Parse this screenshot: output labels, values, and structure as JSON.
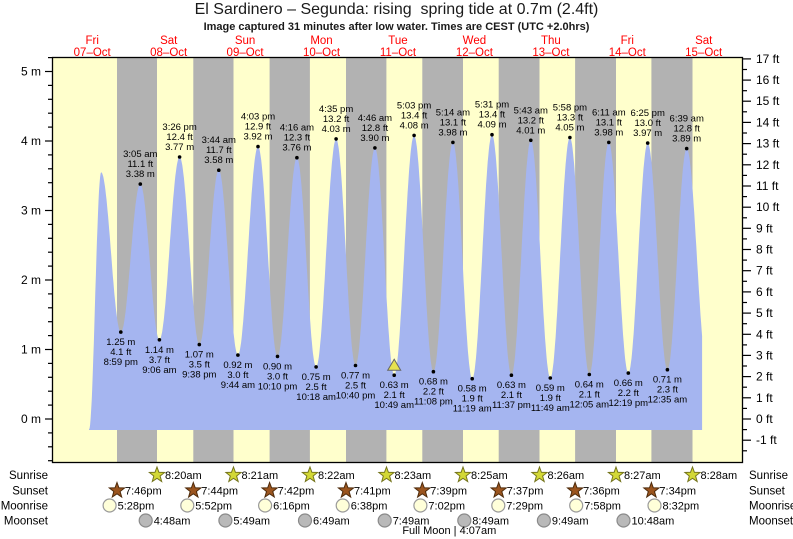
{
  "title": "El Sardinero – Segunda: rising  spring tide at 0.7m (2.4ft)",
  "subtitle": "Image captured 31 minutes after low water. Times are CEST (UTC +2.0hrs)",
  "days": [
    {
      "name": "Fri",
      "date": "07–Oct"
    },
    {
      "name": "Sat",
      "date": "08–Oct"
    },
    {
      "name": "Sun",
      "date": "09–Oct"
    },
    {
      "name": "Mon",
      "date": "10–Oct"
    },
    {
      "name": "Tue",
      "date": "11–Oct"
    },
    {
      "name": "Wed",
      "date": "12–Oct"
    },
    {
      "name": "Thu",
      "date": "13–Oct"
    },
    {
      "name": "Fri",
      "date": "14–Oct"
    },
    {
      "name": "Sat",
      "date": "15–Oct"
    }
  ],
  "chart_data": {
    "type": "area",
    "x_axis": "time, Fri 07-Oct 00:00 through Sat 15-Oct, 9 day columns",
    "y_left": {
      "unit": "m",
      "ticks": [
        0,
        1,
        2,
        3,
        4,
        5
      ],
      "minor_step": 0.2
    },
    "y_right": {
      "unit": "ft",
      "min": -1,
      "max": 17,
      "minor_step": 0.5
    },
    "colors": {
      "day_bg": "#ffffcc",
      "night_bg": "#b2b2b2",
      "tide_fill": "#a5b5f0",
      "frame": "#000000",
      "day_label": "#ff0000",
      "annotation": "#000000",
      "current_marker": "#e6e24e"
    },
    "events": [
      {
        "day": 0,
        "time": "11:00 am",
        "m": -0.15,
        "type": "edge",
        "labeled": false
      },
      {
        "day": 0,
        "time": "2:48 pm",
        "m": 3.55,
        "type": "high",
        "labeled": false
      },
      {
        "day": 0,
        "time": "8:59 pm",
        "m": 1.25,
        "ft": "4.1 ft",
        "type": "low",
        "labeled": true
      },
      {
        "day": 1,
        "time": "3:05 am",
        "m": 3.38,
        "ft": "11.1 ft",
        "type": "high",
        "labeled": true
      },
      {
        "day": 1,
        "time": "9:06 am",
        "m": 1.14,
        "ft": "3.7 ft",
        "type": "low",
        "labeled": true
      },
      {
        "day": 1,
        "time": "3:26 pm",
        "m": 3.77,
        "ft": "12.4 ft",
        "type": "high",
        "labeled": true
      },
      {
        "day": 1,
        "time": "9:38 pm",
        "m": 1.07,
        "ft": "3.5 ft",
        "type": "low",
        "labeled": true
      },
      {
        "day": 2,
        "time": "3:44 am",
        "m": 3.58,
        "ft": "11.7 ft",
        "type": "high",
        "labeled": true
      },
      {
        "day": 2,
        "time": "9:44 am",
        "m": 0.92,
        "ft": "3.0 ft",
        "type": "low",
        "labeled": true
      },
      {
        "day": 2,
        "time": "4:03 pm",
        "m": 3.92,
        "ft": "12.9 ft",
        "type": "high",
        "labeled": true
      },
      {
        "day": 2,
        "time": "10:10 pm",
        "m": 0.9,
        "ft": "3.0 ft",
        "type": "low",
        "labeled": true
      },
      {
        "day": 3,
        "time": "4:16 am",
        "m": 3.76,
        "ft": "12.3 ft",
        "type": "high",
        "labeled": true
      },
      {
        "day": 3,
        "time": "10:18 am",
        "m": 0.75,
        "ft": "2.5 ft",
        "type": "low",
        "labeled": true
      },
      {
        "day": 3,
        "time": "4:35 pm",
        "m": 4.03,
        "ft": "13.2 ft",
        "type": "high",
        "labeled": true
      },
      {
        "day": 3,
        "time": "10:40 pm",
        "m": 0.77,
        "ft": "2.5 ft",
        "type": "low",
        "labeled": true
      },
      {
        "day": 4,
        "time": "4:46 am",
        "m": 3.9,
        "ft": "12.8 ft",
        "type": "high",
        "labeled": true
      },
      {
        "day": 4,
        "time": "10:49 am",
        "m": 0.63,
        "ft": "2.1 ft",
        "type": "low",
        "labeled": true,
        "current": true
      },
      {
        "day": 4,
        "time": "5:03 pm",
        "m": 4.08,
        "ft": "13.4 ft",
        "type": "high",
        "labeled": true
      },
      {
        "day": 4,
        "time": "11:08 pm",
        "m": 0.68,
        "ft": "2.2 ft",
        "type": "low",
        "labeled": true
      },
      {
        "day": 5,
        "time": "5:14 am",
        "m": 3.98,
        "ft": "13.1 ft",
        "type": "high",
        "labeled": true
      },
      {
        "day": 5,
        "time": "11:19 am",
        "m": 0.58,
        "ft": "1.9 ft",
        "type": "low",
        "labeled": true
      },
      {
        "day": 5,
        "time": "5:31 pm",
        "m": 4.09,
        "ft": "13.4 ft",
        "type": "high",
        "labeled": true
      },
      {
        "day": 5,
        "time": "11:37 pm",
        "m": 0.63,
        "ft": "2.1 ft",
        "type": "low",
        "labeled": true
      },
      {
        "day": 6,
        "time": "5:43 am",
        "m": 4.01,
        "ft": "13.2 ft",
        "type": "high",
        "labeled": true
      },
      {
        "day": 6,
        "time": "11:49 am",
        "m": 0.59,
        "ft": "1.9 ft",
        "type": "low",
        "labeled": true
      },
      {
        "day": 6,
        "time": "5:58 pm",
        "m": 4.05,
        "ft": "13.3 ft",
        "type": "high",
        "labeled": true
      },
      {
        "day": 7,
        "time": "12:05 am",
        "m": 0.64,
        "ft": "2.1 ft",
        "type": "low",
        "labeled": true
      },
      {
        "day": 7,
        "time": "6:11 am",
        "m": 3.98,
        "ft": "13.1 ft",
        "type": "high",
        "labeled": true
      },
      {
        "day": 7,
        "time": "12:19 pm",
        "m": 0.66,
        "ft": "2.2 ft",
        "type": "low",
        "labeled": true
      },
      {
        "day": 7,
        "time": "6:25 pm",
        "m": 3.97,
        "ft": "13.0 ft",
        "type": "high",
        "labeled": true
      },
      {
        "day": 8,
        "time": "12:35 am",
        "m": 0.71,
        "ft": "2.3 ft",
        "type": "low",
        "labeled": true
      },
      {
        "day": 8,
        "time": "6:39 am",
        "m": 3.89,
        "ft": "12.8 ft",
        "type": "high",
        "labeled": true
      },
      {
        "day": 8,
        "time": "1:10 pm",
        "m": 0.7,
        "type": "edge",
        "labeled": false
      }
    ],
    "curve_cut": {
      "day": 8,
      "time": "11:30 am"
    }
  },
  "astro": {
    "rows": [
      {
        "key": "sunrise",
        "label": "Sunrise",
        "marker": "star",
        "fill": "#d3d836",
        "stroke": "#74741c",
        "events": [
          {
            "day": 1,
            "time": "8:20am"
          },
          {
            "day": 2,
            "time": "8:21am"
          },
          {
            "day": 3,
            "time": "8:22am"
          },
          {
            "day": 4,
            "time": "8:23am"
          },
          {
            "day": 5,
            "time": "8:25am"
          },
          {
            "day": 6,
            "time": "8:26am"
          },
          {
            "day": 7,
            "time": "8:27am"
          },
          {
            "day": 8,
            "time": "8:28am"
          }
        ]
      },
      {
        "key": "sunset",
        "label": "Sunset",
        "marker": "star",
        "fill": "#9b551f",
        "stroke": "#4d2a0a",
        "events": [
          {
            "day": 0,
            "time": "7:46pm"
          },
          {
            "day": 1,
            "time": "7:44pm"
          },
          {
            "day": 2,
            "time": "7:42pm"
          },
          {
            "day": 3,
            "time": "7:41pm"
          },
          {
            "day": 4,
            "time": "7:39pm"
          },
          {
            "day": 5,
            "time": "7:37pm"
          },
          {
            "day": 6,
            "time": "7:36pm"
          },
          {
            "day": 7,
            "time": "7:34pm"
          }
        ]
      },
      {
        "key": "moonrise",
        "label": "Moonrise",
        "marker": "circle",
        "fill": "#ffffd9",
        "stroke": "#9a9a9a",
        "events": [
          {
            "day": 0,
            "time": "5:28pm"
          },
          {
            "day": 1,
            "time": "5:52pm"
          },
          {
            "day": 2,
            "time": "6:16pm"
          },
          {
            "day": 3,
            "time": "6:38pm"
          },
          {
            "day": 4,
            "time": "7:02pm"
          },
          {
            "day": 5,
            "time": "7:29pm"
          },
          {
            "day": 6,
            "time": "7:58pm"
          },
          {
            "day": 7,
            "time": "8:32pm"
          }
        ]
      },
      {
        "key": "moonset",
        "label": "Moonset",
        "marker": "circle",
        "fill": "#b9b9b9",
        "stroke": "#8a8a8a",
        "events": [
          {
            "day": 1,
            "time": "4:48am"
          },
          {
            "day": 2,
            "time": "5:49am"
          },
          {
            "day": 3,
            "time": "6:49am"
          },
          {
            "day": 4,
            "time": "7:49am"
          },
          {
            "day": 5,
            "time": "8:49am"
          },
          {
            "day": 6,
            "time": "9:49am"
          },
          {
            "day": 7,
            "time": "10:48am"
          }
        ]
      }
    ],
    "full_moon": {
      "label": "Full Moon | 4:07am",
      "day": 5,
      "time": "4:07am"
    }
  }
}
